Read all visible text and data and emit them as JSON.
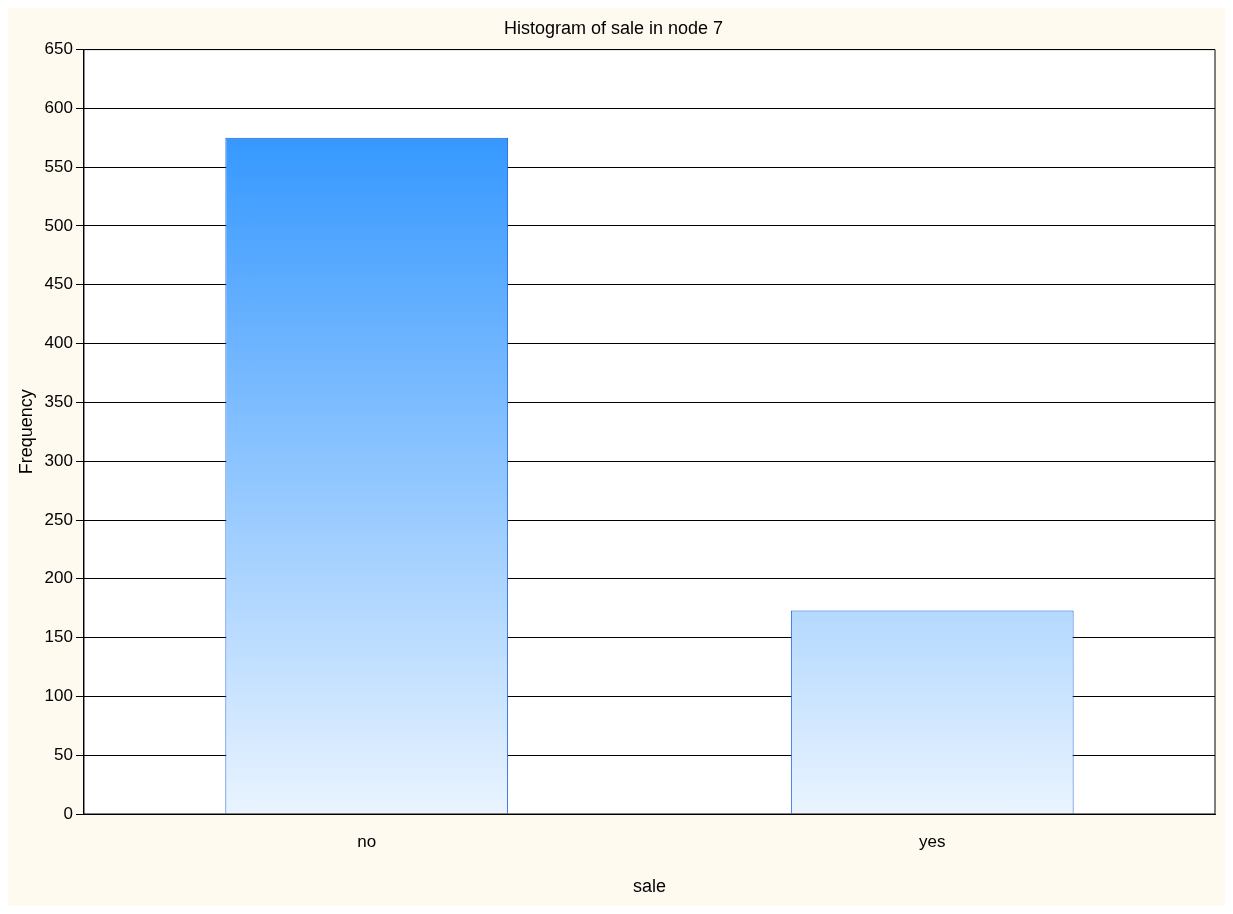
{
  "chart_data": {
    "type": "bar",
    "title": "Histogram of sale in node 7",
    "xlabel": "sale",
    "ylabel": "Frequency",
    "categories": [
      "no",
      "yes"
    ],
    "values": [
      575,
      173
    ],
    "color": "#1e8cff",
    "ylim": [
      0,
      650
    ],
    "yticks": [
      0,
      50,
      100,
      150,
      200,
      250,
      300,
      350,
      400,
      450,
      500,
      550,
      600,
      650
    ],
    "grid": "y",
    "legend": false
  }
}
